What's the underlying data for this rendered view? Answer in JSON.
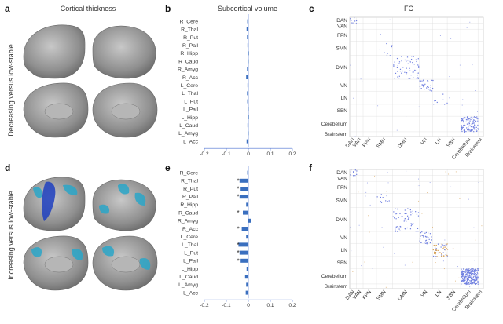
{
  "panels": {
    "a": "a",
    "b": "b",
    "c": "c",
    "d": "d",
    "e": "e",
    "f": "f"
  },
  "column_titles": {
    "cortical": "Cortical thickness",
    "subcortical": "Subcortical volume",
    "fc": "FC"
  },
  "row_labels": {
    "top": "Decreasing versus low-stable",
    "bottom": "Increasing versus low-stable"
  },
  "colors": {
    "bar": "#3a6fbf",
    "axis": "#4a6fd0",
    "brain": "#9a9a9a",
    "highlight_cyan": "#2aa6c8",
    "highlight_blue": "#1f3fbf",
    "fc_dots_blue": "#6f7fe0",
    "fc_dots_orange": "#d49a4a"
  },
  "chart_data": [
    {
      "id": "b",
      "type": "bar",
      "orientation": "horizontal",
      "categories": [
        "R_Cere",
        "R_Thal",
        "R_Put",
        "R_Pall",
        "R_Hipp",
        "R_Caud",
        "R_Amyg",
        "R_Acc",
        "L_Cere",
        "L_Thal",
        "L_Put",
        "L_Pall",
        "L_Hipp",
        "L_Caud",
        "L_Amyg",
        "L_Acc"
      ],
      "values": [
        -0.005,
        -0.008,
        -0.006,
        -0.004,
        -0.002,
        -0.003,
        -0.006,
        -0.01,
        -0.004,
        -0.006,
        -0.005,
        -0.003,
        -0.002,
        -0.004,
        -0.003,
        -0.008
      ],
      "significant": [
        false,
        false,
        false,
        false,
        false,
        false,
        false,
        false,
        false,
        false,
        false,
        false,
        false,
        false,
        false,
        false
      ],
      "xlim": [
        -0.2,
        0.2
      ],
      "xticks": [
        "-0.2",
        "-0.1",
        "0",
        "0.1",
        "0.2"
      ]
    },
    {
      "id": "e",
      "type": "bar",
      "orientation": "horizontal",
      "categories": [
        "R_Cere",
        "R_Thal",
        "R_Put",
        "R_Pall",
        "R_Hipp",
        "R_Caud",
        "R_Amyg",
        "R_Acc",
        "L_Cere",
        "L_Thal",
        "L_Put",
        "L_Pall",
        "L_Hipp",
        "L_Caud",
        "L_Amyg",
        "L_Acc"
      ],
      "values": [
        -0.005,
        -0.04,
        -0.035,
        -0.04,
        -0.01,
        -0.025,
        0.012,
        -0.03,
        -0.01,
        -0.045,
        -0.04,
        -0.035,
        -0.008,
        -0.015,
        -0.01,
        -0.012
      ],
      "significant": [
        false,
        true,
        true,
        true,
        false,
        true,
        false,
        true,
        false,
        true,
        true,
        true,
        false,
        false,
        false,
        false
      ],
      "xlim": [
        -0.2,
        0.2
      ],
      "xticks": [
        "-0.2",
        "-0.1",
        "0",
        "0.1",
        "0.2"
      ]
    }
  ],
  "fc": {
    "networks": [
      "DAN",
      "VAN",
      "FPN",
      "SMN",
      "DMN",
      "VN",
      "LN",
      "SBN",
      "Cerebellum",
      "Brainstem"
    ],
    "x_networks": [
      "DAN",
      "VAN",
      "FPN",
      "SMN",
      "DMN",
      "VN",
      "LN",
      "SBN",
      "Cerebellum",
      "Brainstem"
    ]
  },
  "significance_marker": "*"
}
